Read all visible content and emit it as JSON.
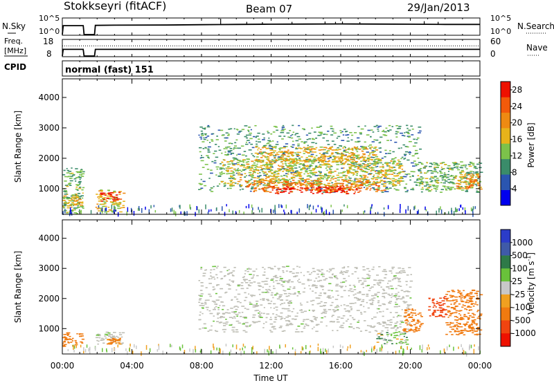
{
  "header": {
    "station": "Stokkseyri (fitACF)",
    "beam": "Beam 07",
    "date": "29/Jan/2013"
  },
  "nsky_panel": {
    "left_label": "N.Sky",
    "right_label": "N.Search",
    "left_ticks": [
      "10^5",
      "10^0"
    ],
    "right_ticks": [
      "10^5",
      "10^0"
    ]
  },
  "freq_panel": {
    "left_label_line1": "Freq.",
    "left_label_line2": "[MHz]",
    "right_label": "Nave",
    "left_ticks": [
      "18",
      "8"
    ],
    "right_ticks": [
      "60",
      "0"
    ]
  },
  "cpid_panel": {
    "label": "CPID",
    "value": "normal (fast) 151"
  },
  "colors": {
    "power_scale": [
      "#0000ee",
      "#2a55b0",
      "#3a8c6a",
      "#7cc24a",
      "#e7b31a",
      "#ee8a12",
      "#f25a0a",
      "#ee1100"
    ],
    "velocity_scale": [
      "#2b3cc9",
      "#3f5aa8",
      "#2e7a48",
      "#69c23a",
      "#c8c8c8",
      "#f0a020",
      "#f07a10",
      "#f04410",
      "#ee1100"
    ],
    "ground_scatter": "#bdbdb4"
  },
  "chart_data": [
    {
      "type": "line",
      "panel": "sky noise / search noise",
      "x_unit": "hours UT",
      "xlim": [
        0,
        24
      ],
      "ylim": [
        0,
        5
      ],
      "y_scale": "log10 (10^0 to 10^5)",
      "series": [
        {
          "name": "N.Sky",
          "x": [
            0,
            0.05,
            1.2,
            1.25,
            1.85,
            1.9,
            3,
            6,
            8,
            9,
            10,
            12,
            14,
            16,
            18,
            20,
            22,
            24
          ],
          "y": [
            0,
            2.8,
            2.8,
            0,
            0,
            2.9,
            2.95,
            3.0,
            3.1,
            3.15,
            3.2,
            3.25,
            3.3,
            3.35,
            3.3,
            3.25,
            3.2,
            3.2
          ],
          "spikes": [
            [
              9.1,
              5
            ],
            [
              10.6,
              4
            ],
            [
              11.5,
              3.9
            ],
            [
              13.2,
              4
            ],
            [
              15.1,
              4.1
            ],
            [
              15.7,
              4
            ],
            [
              16.1,
              4.1
            ],
            [
              17.1,
              3.9
            ],
            [
              20.8,
              4.2
            ],
            [
              21.6,
              4
            ]
          ]
        },
        {
          "name": "N.Search",
          "style": "dotted",
          "x": [],
          "y": []
        }
      ]
    },
    {
      "type": "line",
      "panel": "frequency / nave",
      "x_unit": "hours UT",
      "xlim": [
        0,
        24
      ],
      "series": [
        {
          "name": "Freq.",
          "unit": "MHz",
          "ylim": [
            8,
            18
          ],
          "x": [
            0,
            0.05,
            1.2,
            1.25,
            1.85,
            1.9,
            24
          ],
          "y": [
            8,
            12.2,
            12.2,
            8,
            8,
            12.2,
            12.2
          ]
        },
        {
          "name": "Nave",
          "style": "dotted",
          "ylim": [
            0,
            60
          ],
          "x": [
            0,
            1.2,
            1.9,
            24
          ],
          "y": [
            38,
            38,
            38,
            38
          ]
        }
      ]
    },
    {
      "type": "heatmap",
      "panel": "power",
      "xlabel": "",
      "ylabel": "Slant Range [km]",
      "xlim": [
        0,
        24
      ],
      "ylim": [
        180,
        4590
      ],
      "y_ticks": [
        1000,
        2000,
        3000,
        4000
      ],
      "colorbar_label": "Power [dB]",
      "colorbar_ticks": [
        4,
        8,
        12,
        16,
        20,
        24,
        28
      ],
      "colorbar_range": [
        0,
        30
      ],
      "echo_regions": [
        {
          "t0": 0.0,
          "t1": 1.15,
          "r0": 200,
          "r1": 1700,
          "power_db": 12
        },
        {
          "t0": 0.0,
          "t1": 1.15,
          "r0": 400,
          "r1": 850,
          "power_db": 18
        },
        {
          "t0": 1.9,
          "t1": 3.5,
          "r0": 250,
          "r1": 1000,
          "power_db": 16
        },
        {
          "t0": 2.1,
          "t1": 3.3,
          "r0": 600,
          "r1": 900,
          "power_db": 28
        },
        {
          "t0": 7.8,
          "t1": 20.5,
          "r0": 900,
          "r1": 3100,
          "power_db": 10
        },
        {
          "t0": 9.0,
          "t1": 19.5,
          "r0": 1100,
          "r1": 2000,
          "power_db": 16
        },
        {
          "t0": 10.5,
          "t1": 18.5,
          "r0": 900,
          "r1": 1300,
          "power_db": 22
        },
        {
          "t0": 12.0,
          "t1": 17.0,
          "r0": 850,
          "r1": 1100,
          "power_db": 28
        },
        {
          "t0": 11.0,
          "t1": 18.0,
          "r0": 1900,
          "r1": 2400,
          "power_db": 18
        },
        {
          "t0": 20.3,
          "t1": 24.0,
          "r0": 900,
          "r1": 1900,
          "power_db": 12
        },
        {
          "t0": 22.5,
          "t1": 24.0,
          "r0": 1000,
          "r1": 1500,
          "power_db": 20
        }
      ]
    },
    {
      "type": "heatmap",
      "panel": "velocity",
      "xlabel": "Time UT",
      "ylabel": "Slant Range [km]",
      "xlim": [
        0,
        24
      ],
      "ylim": [
        180,
        4590
      ],
      "x_ticks": [
        "00:00",
        "04:00",
        "08:00",
        "12:00",
        "16:00",
        "20:00",
        "00:00"
      ],
      "y_ticks": [
        1000,
        2000,
        3000,
        4000
      ],
      "colorbar_label": "Velocity [m s^-1]",
      "colorbar_ticks": [
        1000,
        500,
        100,
        25,
        -25,
        -100,
        -500,
        -1000
      ],
      "echo_regions": [
        {
          "t0": 0.0,
          "t1": 1.15,
          "r0": 400,
          "r1": 900,
          "velocity": -400
        },
        {
          "t0": 1.9,
          "t1": 3.5,
          "r0": 500,
          "r1": 900,
          "ground_scatter": true
        },
        {
          "t0": 2.5,
          "t1": 3.3,
          "r0": 500,
          "r1": 700,
          "velocity": -150
        },
        {
          "t0": 7.8,
          "t1": 20.0,
          "r0": 900,
          "r1": 3100,
          "ground_scatter": true
        },
        {
          "t0": 18.0,
          "t1": 19.8,
          "r0": 500,
          "r1": 900,
          "velocity": 60
        },
        {
          "t0": 19.5,
          "t1": 20.6,
          "r0": 900,
          "r1": 1700,
          "velocity": -300
        },
        {
          "t0": 22.0,
          "t1": 24.0,
          "r0": 800,
          "r1": 2300,
          "velocity": -200
        },
        {
          "t0": 21.0,
          "t1": 22.0,
          "r0": 1400,
          "r1": 2100,
          "velocity": -600
        }
      ]
    }
  ]
}
